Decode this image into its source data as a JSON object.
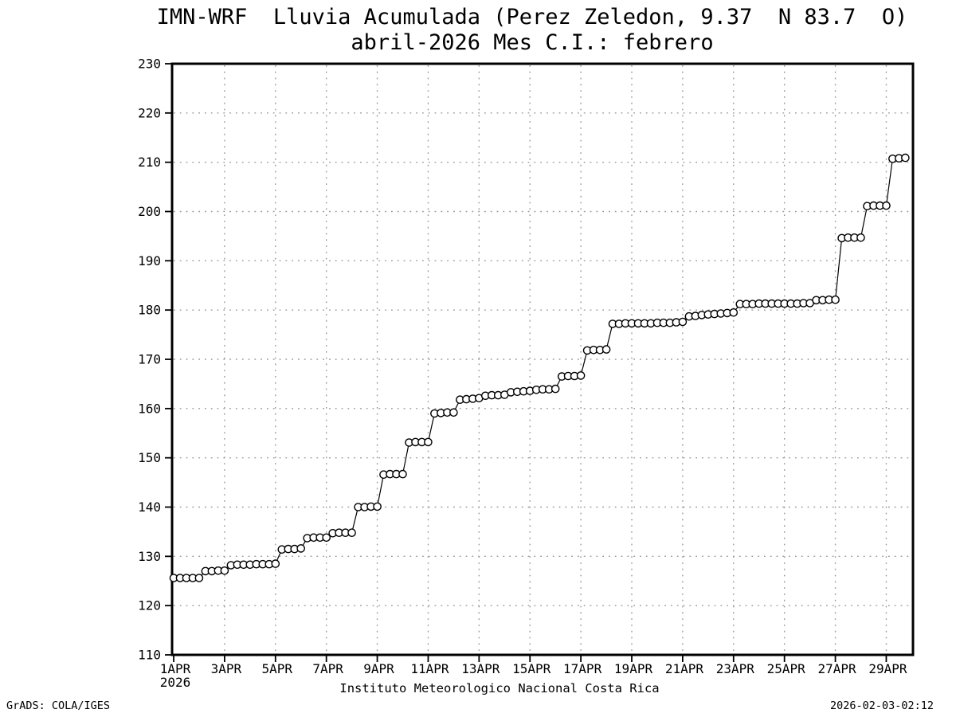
{
  "footer": {
    "left": "GrADS: COLA/IGES",
    "right": "2026-02-03-02:12"
  },
  "chart_data": {
    "type": "line",
    "title": "IMN-WRF  Lluvia Acumulada (Perez Zeledon, 9.37  N 83.7  O)",
    "subtitle": "abril-2026 Mes C.I.: febrero",
    "xlabel": "Instituto Meteorologico Nacional Costa Rica",
    "ylabel": "",
    "grid": "dotted",
    "legend": "none",
    "marker": "open-circle",
    "y_axis": {
      "min": 110,
      "max": 230,
      "ticks": [
        110,
        120,
        130,
        140,
        150,
        160,
        170,
        180,
        190,
        200,
        210,
        220,
        230
      ]
    },
    "x_axis": {
      "max_day": 29.05,
      "year_label": "2026",
      "ticks": [
        {
          "day": 0,
          "label": "1APR"
        },
        {
          "day": 2,
          "label": "3APR"
        },
        {
          "day": 4,
          "label": "5APR"
        },
        {
          "day": 6,
          "label": "7APR"
        },
        {
          "day": 8,
          "label": "9APR"
        },
        {
          "day": 10,
          "label": "11APR"
        },
        {
          "day": 12,
          "label": "13APR"
        },
        {
          "day": 14,
          "label": "15APR"
        },
        {
          "day": 16,
          "label": "17APR"
        },
        {
          "day": 18,
          "label": "19APR"
        },
        {
          "day": 20,
          "label": "21APR"
        },
        {
          "day": 22,
          "label": "23APR"
        },
        {
          "day": 24,
          "label": "25APR"
        },
        {
          "day": 26,
          "label": "27APR"
        },
        {
          "day": 28,
          "label": "29APR"
        }
      ]
    },
    "series": [
      {
        "name": "lluvia-acumulada-mm",
        "start_day": 0,
        "step_days": 0.25,
        "values": [
          125.6,
          125.6,
          125.6,
          125.6,
          125.6,
          127.0,
          127.0,
          127.1,
          127.1,
          128.2,
          128.3,
          128.3,
          128.3,
          128.4,
          128.4,
          128.4,
          128.5,
          131.4,
          131.5,
          131.5,
          131.6,
          133.7,
          133.8,
          133.8,
          133.8,
          134.7,
          134.8,
          134.8,
          134.8,
          140.0,
          140.0,
          140.1,
          140.1,
          146.6,
          146.7,
          146.7,
          146.7,
          153.1,
          153.2,
          153.2,
          153.2,
          159.0,
          159.1,
          159.2,
          159.2,
          161.8,
          161.9,
          162.0,
          162.1,
          162.6,
          162.7,
          162.7,
          162.8,
          163.3,
          163.4,
          163.5,
          163.6,
          163.8,
          163.9,
          163.9,
          164.0,
          166.5,
          166.6,
          166.6,
          166.7,
          171.8,
          171.9,
          171.9,
          172.0,
          177.2,
          177.2,
          177.3,
          177.3,
          177.3,
          177.3,
          177.3,
          177.4,
          177.4,
          177.4,
          177.5,
          177.6,
          178.7,
          178.8,
          179.0,
          179.1,
          179.2,
          179.3,
          179.4,
          179.5,
          181.2,
          181.2,
          181.2,
          181.3,
          181.3,
          181.3,
          181.3,
          181.3,
          181.3,
          181.3,
          181.4,
          181.4,
          182.0,
          182.0,
          182.1,
          182.1,
          194.6,
          194.7,
          194.7,
          194.7,
          201.1,
          201.2,
          201.2,
          201.2,
          210.7,
          210.8,
          210.9
        ]
      }
    ],
    "colors": {
      "background": "#ffffff",
      "line": "#000000",
      "marker_fill": "#ffffff",
      "marker_stroke": "#000000",
      "grid": "#9a9a9a",
      "frame": "#000000",
      "text": "#000000"
    }
  }
}
